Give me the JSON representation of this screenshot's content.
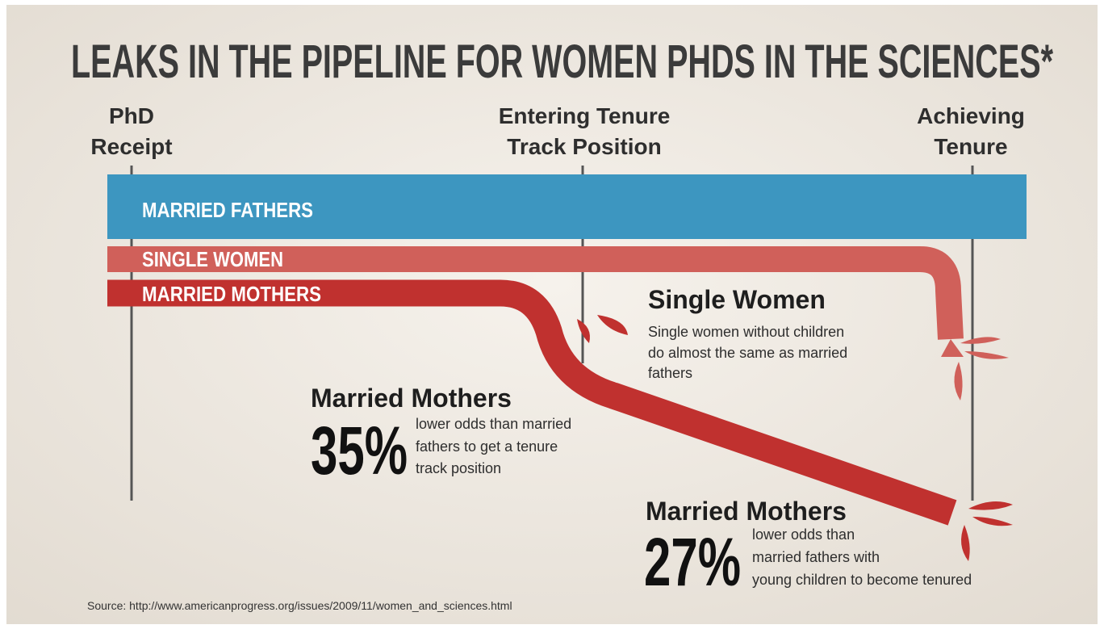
{
  "title": "LEAKS IN THE PIPELINE FOR WOMEN PHDS IN THE SCIENCES*",
  "stages": [
    {
      "lines": [
        "PhD",
        "Receipt"
      ]
    },
    {
      "lines": [
        "Entering Tenure",
        "Track Position"
      ]
    },
    {
      "lines": [
        "Achieving",
        "Tenure"
      ]
    }
  ],
  "bands": [
    "MARRIED FATHERS",
    "SINGLE WOMEN",
    "MARRIED MOTHERS"
  ],
  "callouts": [
    {
      "heading": "Single Women",
      "lines": [
        "Single women without children",
        "do almost the same as married",
        "fathers"
      ]
    },
    {
      "heading": "Married Mothers",
      "big": "35%",
      "lines": [
        "lower odds than married",
        "fathers to get a tenure",
        "track position"
      ]
    },
    {
      "heading": "Married Mothers",
      "big": "27%",
      "lines": [
        "lower odds than",
        "married fathers with",
        "young children to become tenured"
      ]
    }
  ],
  "source": "Source: http://www.americanprogress.org/issues/2009/11/women_and_sciences.html"
}
